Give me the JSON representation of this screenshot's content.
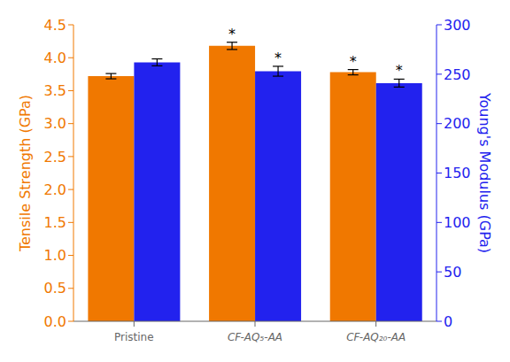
{
  "chart_data": {
    "type": "bar",
    "categories": [
      "Pristine",
      "CF-AQ₅-AA",
      "CF-AQ₂₀-AA"
    ],
    "ylabel": "Tensile Strength (GPa)",
    "y2label": "Young's Modulus (GPa)",
    "ylim": [
      0.0,
      4.5
    ],
    "yticks": [
      {
        "value": 0,
        "label": "0.0"
      },
      0.5,
      {
        "value": 1,
        "label": "1.0"
      },
      1.5,
      {
        "value": 2,
        "label": "2.0"
      },
      2.5,
      {
        "value": 3,
        "label": "3.0"
      },
      3.5,
      {
        "value": 4,
        "label": "4.0"
      },
      4.5
    ],
    "y2lim": [
      0,
      300
    ],
    "y2ticks": [
      0,
      50,
      100,
      150,
      200,
      250,
      300
    ],
    "grid": false,
    "series": [
      {
        "color": "#F07800",
        "values": [
          3.72,
          4.18,
          3.78
        ],
        "errors": [
          0.04,
          0.055,
          0.04
        ],
        "annotations": [
          null,
          "*",
          "*"
        ]
      },
      {
        "color": "#2222EE",
        "axis": "y2",
        "values": [
          262.0,
          253.0,
          241.0
        ],
        "errors": [
          3.5,
          5.0,
          4.0
        ],
        "annotations": [
          null,
          "*",
          "*"
        ]
      }
    ]
  }
}
